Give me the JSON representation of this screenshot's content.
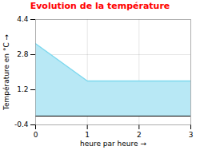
{
  "chart_data": {
    "type": "area",
    "title": "Evolution de la température",
    "xlabel": "heure par heure",
    "ylabel": "Température en °C",
    "x": [
      0,
      1,
      2,
      3
    ],
    "values": [
      3.3,
      1.6,
      1.6,
      1.6
    ],
    "colors": [
      "#b8e8f5",
      "#7dd8ee"
    ],
    "xlim": [
      0,
      3
    ],
    "ylim": [
      -0.4,
      4.4
    ],
    "xticks": [
      0,
      1,
      2,
      3
    ],
    "yticks": [
      -0.4,
      1.2,
      2.8,
      4.4
    ],
    "grid": true
  }
}
